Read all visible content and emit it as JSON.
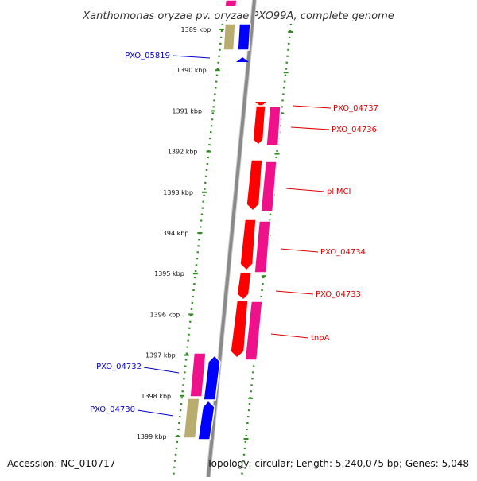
{
  "title": "Xanthomonas oryzae pv. oryzae PXO99A, complete genome",
  "footer": {
    "accession": "Accession: NC_010717",
    "topology": "Topology: circular; Length: 5,240,075 bp; Genes: 5,048"
  },
  "colors": {
    "backbone": "#8a8a8a",
    "dotted_line": "#2e8b1f",
    "left_label": "#0000cc",
    "right_label": "#dd0000",
    "red_gene": "#ff0000",
    "pink_gene": "#ee1189",
    "blue_gene": "#0000ff",
    "olive_gene": "#b8ad6e"
  },
  "scale_ticks": [
    {
      "label": "1389 kbp",
      "kbp": 1389
    },
    {
      "label": "1390 kbp",
      "kbp": 1390
    },
    {
      "label": "1391 kbp",
      "kbp": 1391
    },
    {
      "label": "1392 kbp",
      "kbp": 1392
    },
    {
      "label": "1393 kbp",
      "kbp": 1393
    },
    {
      "label": "1394 kbp",
      "kbp": 1394
    },
    {
      "label": "1395 kbp",
      "kbp": 1395
    },
    {
      "label": "1396 kbp",
      "kbp": 1396
    },
    {
      "label": "1397 kbp",
      "kbp": 1397
    },
    {
      "label": "1398 kbp",
      "kbp": 1398
    },
    {
      "label": "1399 kbp",
      "kbp": 1399
    }
  ],
  "gene_labels": [
    {
      "id": "PXO_05819",
      "text": "PXO_05819",
      "side": "left"
    },
    {
      "id": "PXO_04737",
      "text": "PXO_04737",
      "side": "right"
    },
    {
      "id": "PXO_04736",
      "text": "PXO_04736",
      "side": "right"
    },
    {
      "id": "pliMCI",
      "text": "pliMCI",
      "side": "right"
    },
    {
      "id": "PXO_04734",
      "text": "PXO_04734",
      "side": "right"
    },
    {
      "id": "PXO_04733",
      "text": "PXO_04733",
      "side": "right"
    },
    {
      "id": "tnpA",
      "text": "tnpA",
      "side": "right"
    },
    {
      "id": "PXO_04732",
      "text": "PXO_04732",
      "side": "left"
    },
    {
      "id": "PXO_04730",
      "text": "PXO_04730",
      "side": "left"
    }
  ],
  "genes": [
    {
      "id": "g-top-olive",
      "color": "olive_gene",
      "strand": "plus"
    },
    {
      "id": "g-top-blue",
      "color": "blue_gene",
      "strand": "plus"
    },
    {
      "id": "g-top-pink",
      "color": "pink_gene",
      "strand": "plus"
    },
    {
      "id": "g-05819",
      "color": "blue_gene",
      "strand": "plus"
    },
    {
      "id": "g-04737",
      "color": "red_gene",
      "strand": "minus"
    },
    {
      "id": "g-04737-cds",
      "color": "red_gene",
      "strand": "minus"
    },
    {
      "id": "g-04736",
      "color": "pink_gene",
      "strand": "minus"
    },
    {
      "id": "g-pliMCI-gene",
      "color": "red_gene",
      "strand": "minus"
    },
    {
      "id": "g-pliMCI-cds",
      "color": "pink_gene",
      "strand": "minus"
    },
    {
      "id": "g-04734-gene",
      "color": "red_gene",
      "strand": "minus"
    },
    {
      "id": "g-04734-cds",
      "color": "pink_gene",
      "strand": "minus"
    },
    {
      "id": "g-04733-gene",
      "color": "red_gene",
      "strand": "minus"
    },
    {
      "id": "g-tnpA-gene",
      "color": "red_gene",
      "strand": "minus"
    },
    {
      "id": "g-tnpA-cds",
      "color": "pink_gene",
      "strand": "minus"
    },
    {
      "id": "g-04732-cds",
      "color": "pink_gene",
      "strand": "plus"
    },
    {
      "id": "g-04732-blue",
      "color": "blue_gene",
      "strand": "plus"
    },
    {
      "id": "g-04730-olive",
      "color": "olive_gene",
      "strand": "plus"
    },
    {
      "id": "g-04730-blue",
      "color": "blue_gene",
      "strand": "plus"
    }
  ]
}
